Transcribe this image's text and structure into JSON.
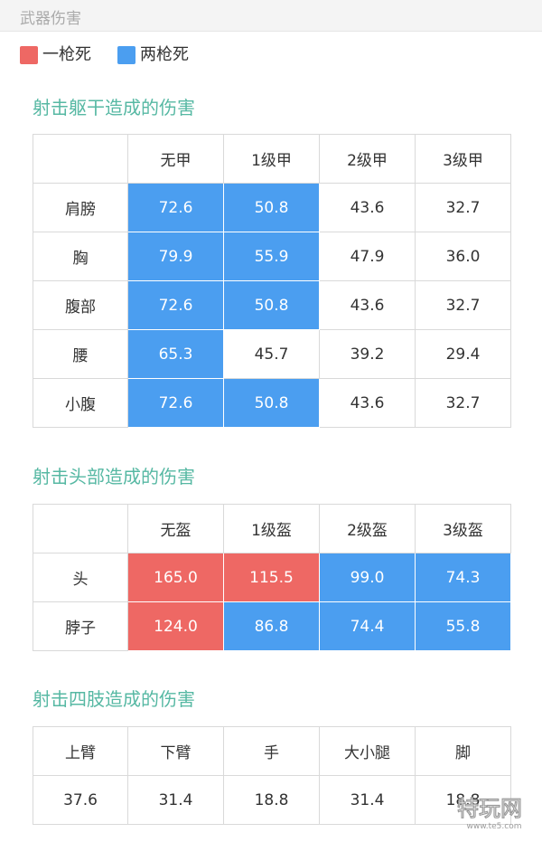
{
  "page_title": "武器伤害",
  "colors": {
    "one_shot": "#ee6864",
    "two_shot": "#4b9ef0",
    "section_title": "#56b8a3"
  },
  "legend": [
    {
      "label": "一枪死",
      "color": "#ee6864"
    },
    {
      "label": "两枪死",
      "color": "#4b9ef0"
    }
  ],
  "torso": {
    "title": "射击躯干造成的伤害",
    "headers": [
      "",
      "无甲",
      "1级甲",
      "2级甲",
      "3级甲"
    ],
    "rows": [
      {
        "label": "肩膀",
        "values": [
          "72.6",
          "50.8",
          "43.6",
          "32.7"
        ],
        "hl": [
          "b",
          "b",
          "",
          ""
        ]
      },
      {
        "label": "胸",
        "values": [
          "79.9",
          "55.9",
          "47.9",
          "36.0"
        ],
        "hl": [
          "b",
          "b",
          "",
          ""
        ]
      },
      {
        "label": "腹部",
        "values": [
          "72.6",
          "50.8",
          "43.6",
          "32.7"
        ],
        "hl": [
          "b",
          "b",
          "",
          ""
        ]
      },
      {
        "label": "腰",
        "values": [
          "65.3",
          "45.7",
          "39.2",
          "29.4"
        ],
        "hl": [
          "b",
          "",
          "",
          ""
        ]
      },
      {
        "label": "小腹",
        "values": [
          "72.6",
          "50.8",
          "43.6",
          "32.7"
        ],
        "hl": [
          "b",
          "b",
          "",
          ""
        ]
      }
    ]
  },
  "head": {
    "title": "射击头部造成的伤害",
    "headers": [
      "",
      "无盔",
      "1级盔",
      "2级盔",
      "3级盔"
    ],
    "rows": [
      {
        "label": "头",
        "values": [
          "165.0",
          "115.5",
          "99.0",
          "74.3"
        ],
        "hl": [
          "r",
          "r",
          "b",
          "b"
        ]
      },
      {
        "label": "脖子",
        "values": [
          "124.0",
          "86.8",
          "74.4",
          "55.8"
        ],
        "hl": [
          "r",
          "b",
          "b",
          "b"
        ]
      }
    ]
  },
  "limbs": {
    "title": "射击四肢造成的伤害",
    "headers": [
      "上臂",
      "下臂",
      "手",
      "大小腿",
      "脚"
    ],
    "values": [
      "37.6",
      "31.4",
      "18.8",
      "31.4",
      "18.8"
    ]
  },
  "watermark": {
    "text": "特玩网",
    "url_text": "www.te5.com"
  }
}
